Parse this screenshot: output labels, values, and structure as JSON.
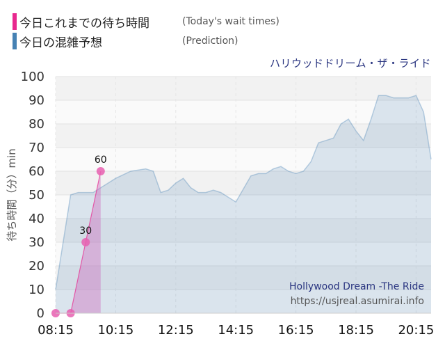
{
  "legend": [
    {
      "label": "今日これまでの待ち時間",
      "note": "(Today's wait times)",
      "color": "#e8288e"
    },
    {
      "label": "今日の混雑予想",
      "note": "(Prediction)",
      "color": "#4682b4"
    }
  ],
  "attraction": "ハリウッドドリーム・ザ・ライド",
  "watermark": {
    "name": "Hollywood Dream -The Ride",
    "url": "https://usjreal.asumirai.info"
  },
  "chart_data": {
    "type": "area",
    "ylabel": "待ち時間（分）min",
    "ylim": [
      0,
      100
    ],
    "yticks": [
      0,
      10,
      20,
      30,
      40,
      50,
      60,
      70,
      80,
      90,
      100
    ],
    "x_start": "08:15",
    "x_end": "20:45",
    "xticks": [
      "08:15",
      "10:15",
      "12:15",
      "14:15",
      "16:15",
      "18:15",
      "20:15"
    ],
    "grid": true,
    "series": [
      {
        "name": "今日の混雑予想",
        "color": "#4682b4",
        "points": [
          [
            "08:15",
            10
          ],
          [
            "08:45",
            50
          ],
          [
            "09:00",
            51
          ],
          [
            "09:15",
            51
          ],
          [
            "09:30",
            51
          ],
          [
            "09:45",
            53
          ],
          [
            "10:00",
            55
          ],
          [
            "10:15",
            57
          ],
          [
            "10:45",
            60
          ],
          [
            "11:15",
            61
          ],
          [
            "11:30",
            60
          ],
          [
            "11:45",
            51
          ],
          [
            "12:00",
            52
          ],
          [
            "12:15",
            55
          ],
          [
            "12:30",
            57
          ],
          [
            "12:45",
            53
          ],
          [
            "13:00",
            51
          ],
          [
            "13:15",
            51
          ],
          [
            "13:30",
            52
          ],
          [
            "13:45",
            51
          ],
          [
            "14:15",
            47
          ],
          [
            "14:45",
            58
          ],
          [
            "15:00",
            59
          ],
          [
            "15:15",
            59
          ],
          [
            "15:30",
            61
          ],
          [
            "15:45",
            62
          ],
          [
            "16:00",
            60
          ],
          [
            "16:15",
            59
          ],
          [
            "16:30",
            60
          ],
          [
            "16:45",
            64
          ],
          [
            "17:00",
            72
          ],
          [
            "17:15",
            73
          ],
          [
            "17:30",
            74
          ],
          [
            "17:45",
            80
          ],
          [
            "18:00",
            82
          ],
          [
            "18:15",
            77
          ],
          [
            "18:30",
            73
          ],
          [
            "18:45",
            82
          ],
          [
            "19:00",
            92
          ],
          [
            "19:15",
            92
          ],
          [
            "19:30",
            91
          ],
          [
            "20:00",
            91
          ],
          [
            "20:15",
            92
          ],
          [
            "20:30",
            85
          ],
          [
            "20:45",
            65
          ]
        ]
      },
      {
        "name": "今日これまでの待ち時間",
        "color": "#e8288e",
        "points": [
          [
            "08:15",
            0
          ],
          [
            "08:45",
            0
          ],
          [
            "09:15",
            30
          ],
          [
            "09:45",
            60
          ]
        ],
        "labels": [
          {
            "time": "09:15",
            "text": "30"
          },
          {
            "time": "09:45",
            "text": "60"
          }
        ]
      }
    ]
  }
}
